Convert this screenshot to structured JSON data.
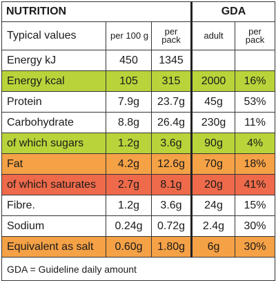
{
  "header": {
    "nutrition": "NUTRITION",
    "gda": "GDA"
  },
  "columns": {
    "typical": "Typical values",
    "per100": "per 100 g",
    "perpack": "per pack",
    "adult": "adult",
    "gda_perpack": "per pack"
  },
  "rows": [
    {
      "label": "Energy kJ",
      "per100": "450",
      "perpack": "1345",
      "adult": "",
      "pct": "",
      "color": "none"
    },
    {
      "label": "Energy kcal",
      "per100": "105",
      "perpack": "315",
      "adult": "2000",
      "pct": "16%",
      "color": "green"
    },
    {
      "label": "Protein",
      "per100": "7.9g",
      "perpack": "23.7g",
      "adult": "45g",
      "pct": "53%",
      "color": "none"
    },
    {
      "label": "Carbohydrate",
      "per100": "8.8g",
      "perpack": "26.4g",
      "adult": "230g",
      "pct": "11%",
      "color": "none"
    },
    {
      "label": "of which sugars",
      "per100": "1.2g",
      "perpack": "3.6g",
      "adult": "90g",
      "pct": "4%",
      "color": "green"
    },
    {
      "label": "Fat",
      "per100": "4.2g",
      "perpack": "12.6g",
      "adult": "70g",
      "pct": "18%",
      "color": "orange"
    },
    {
      "label": "of which saturates",
      "per100": "2.7g",
      "perpack": "8.1g",
      "adult": "20g",
      "pct": "41%",
      "color": "red"
    },
    {
      "label": "Fibre.",
      "per100": "1.2g",
      "perpack": "3.6g",
      "adult": "24g",
      "pct": "15%",
      "color": "none"
    },
    {
      "label": "Sodium",
      "per100": "0.24g",
      "perpack": "0.72g",
      "adult": "2.4g",
      "pct": "30%",
      "color": "none"
    },
    {
      "label": "Equivalent as salt",
      "per100": "0.60g",
      "perpack": "1.80g",
      "adult": "6g",
      "pct": "30%",
      "color": "orange"
    }
  ],
  "footer": "GDA = Guideline daily amount",
  "colors": {
    "green": "#b8d43a",
    "orange": "#f5a146",
    "red": "#ee6a4a"
  }
}
